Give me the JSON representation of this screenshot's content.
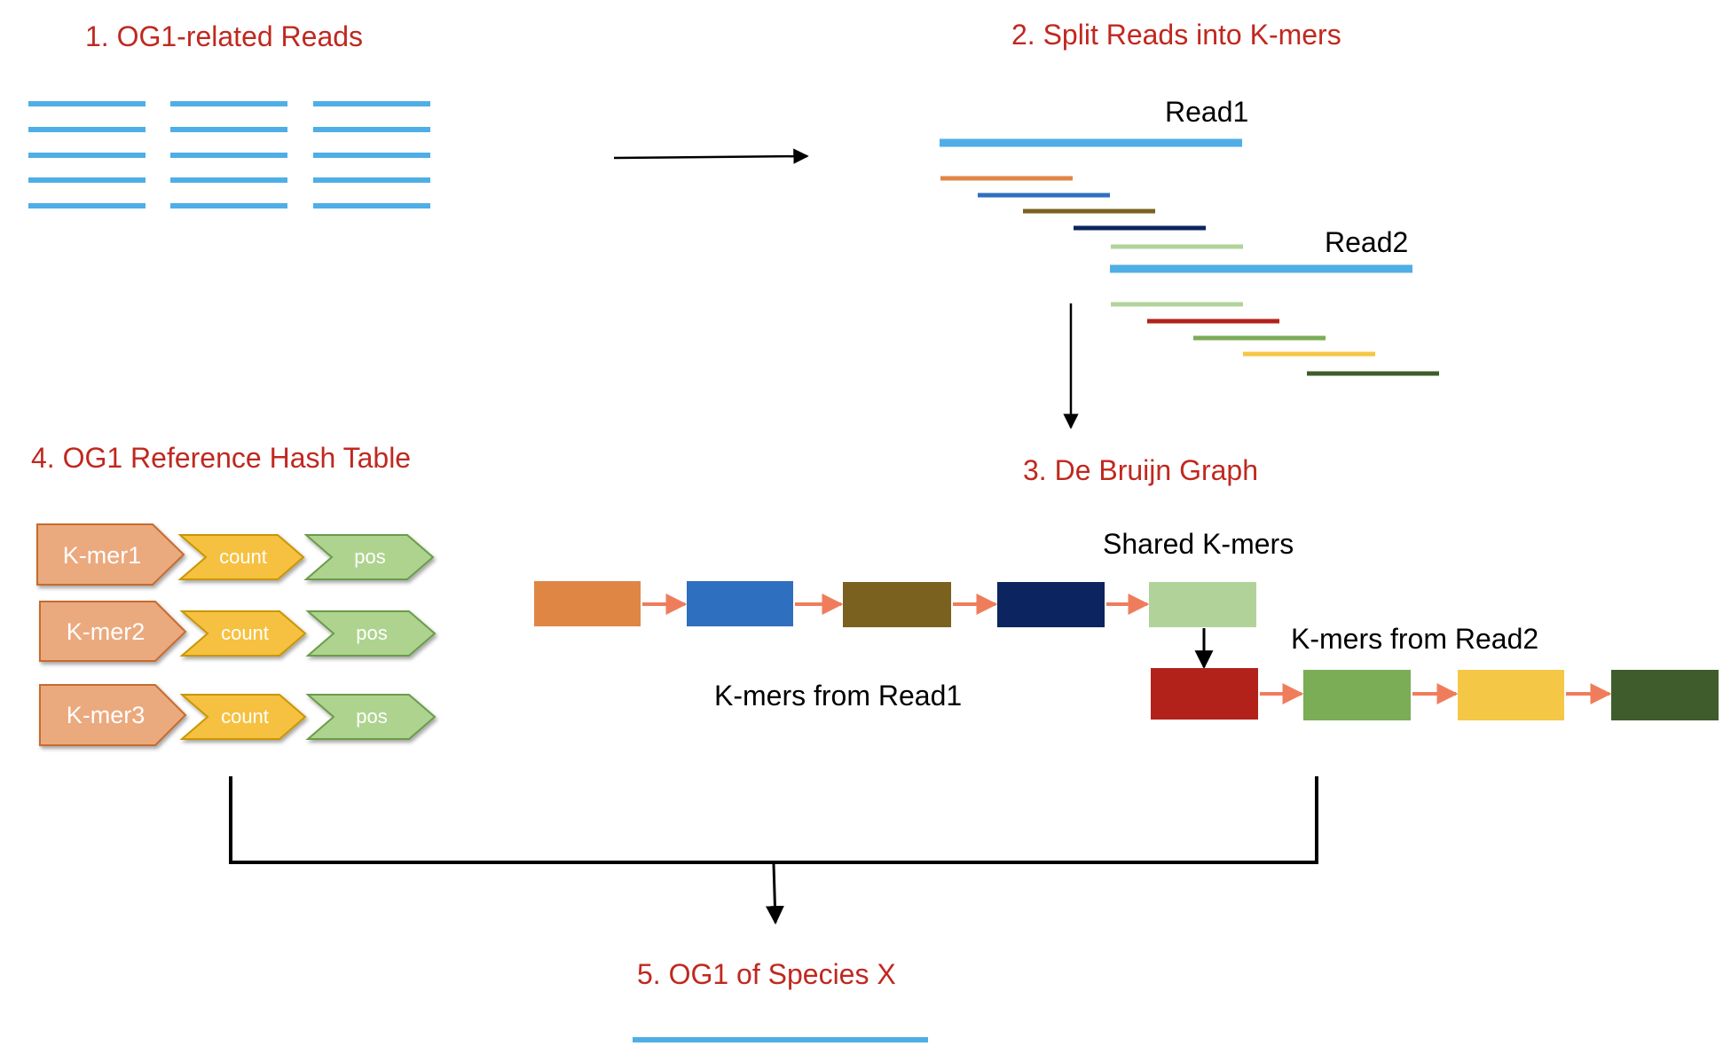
{
  "titles": {
    "step1": "1. OG1-related Reads",
    "step2": "2. Split Reads into K-mers",
    "step3": "3. De Bruijn Graph",
    "step4": "4. OG1 Reference Hash Table",
    "step5": "5. OG1 of Species X"
  },
  "labels": {
    "read1": "Read1",
    "read2": "Read2",
    "shared_kmers": "Shared K-mers",
    "kmers_from_read1": "K-mers from Read1",
    "kmers_from_read2": "K-mers from Read2"
  },
  "hash_table": {
    "rows": [
      {
        "kmer": "K-mer1",
        "count": "count",
        "pos": "pos"
      },
      {
        "kmer": "K-mer2",
        "count": "count",
        "pos": "pos"
      },
      {
        "kmer": "K-mer3",
        "count": "count",
        "pos": "pos"
      }
    ]
  },
  "colors": {
    "title_red": "#c0281f",
    "read_blue": "#4faee6",
    "kmer_orange": "#e08645",
    "kmer_blue": "#2f6fc0",
    "kmer_olive": "#7a6120",
    "kmer_navy": "#0c2560",
    "kmer_lightgreen": "#b1d39a",
    "kmer_red": "#b2221b",
    "kmer_green": "#7bac56",
    "kmer_yellow": "#f5c746",
    "kmer_darkgreen": "#3f5d2c",
    "edge_arrow": "#ef7d5c",
    "chevron_salmon": "#eba97e",
    "chevron_yellow": "#f6c141",
    "chevron_green": "#aed38f"
  }
}
